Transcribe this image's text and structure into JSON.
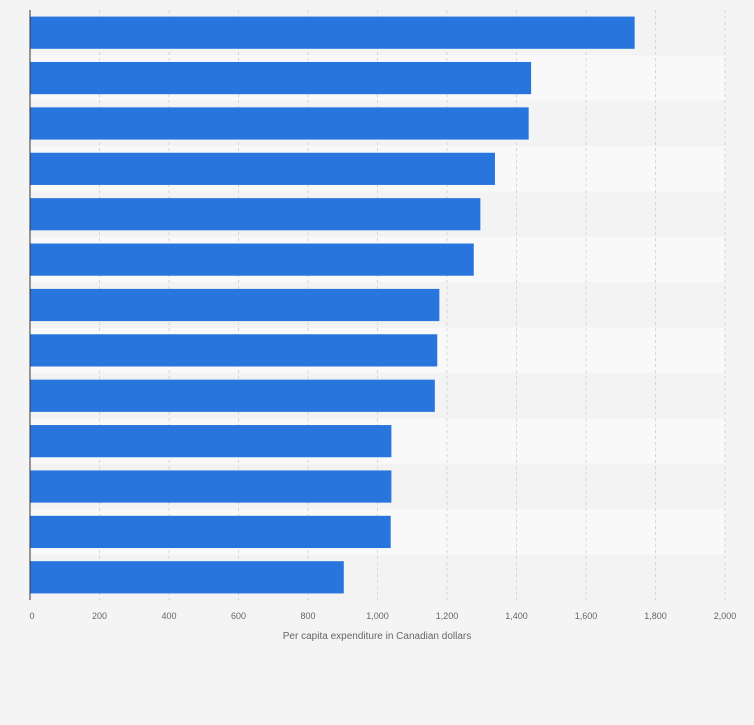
{
  "chart_data": {
    "type": "bar",
    "orientation": "horizontal",
    "title": "",
    "xlabel": "Per capita expenditure in Canadian dollars",
    "ylabel": "",
    "xlim": [
      0,
      2000
    ],
    "ticks": [
      {
        "value": 0,
        "label": "0"
      },
      {
        "value": 200,
        "label": "200"
      },
      {
        "value": 400,
        "label": "400"
      },
      {
        "value": 600,
        "label": "600"
      },
      {
        "value": 800,
        "label": "800"
      },
      {
        "value": 1000,
        "label": "1,000"
      },
      {
        "value": 1200,
        "label": "1,200"
      },
      {
        "value": 1400,
        "label": "1,400"
      },
      {
        "value": 1600,
        "label": "1,600"
      },
      {
        "value": 1800,
        "label": "1,800"
      },
      {
        "value": 2000,
        "label": "2,000"
      }
    ],
    "values": [
      1740,
      1442,
      1435,
      1338,
      1296,
      1277,
      1178,
      1172,
      1165,
      1040,
      1040,
      1038,
      903
    ],
    "bar_color": "#2876dd",
    "grid": true
  }
}
